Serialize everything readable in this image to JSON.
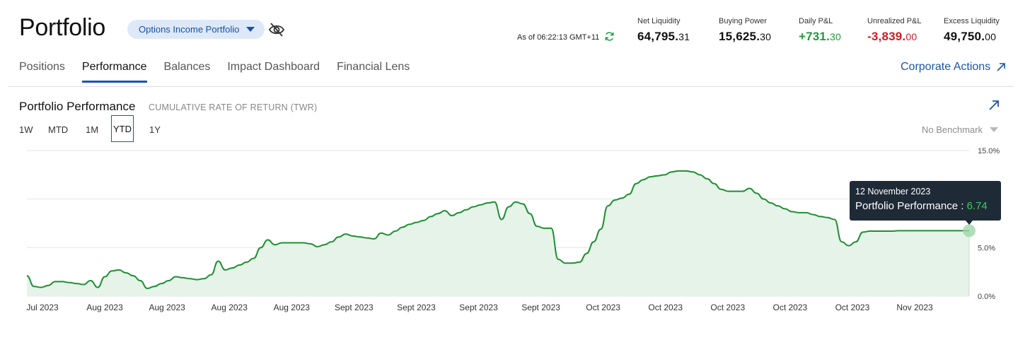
{
  "header": {
    "title": "Portfolio",
    "account_selector": "Options Income Portfolio",
    "as_of": "As of 06:22:13 GMT+11",
    "metrics": [
      {
        "label": "Net Liquidity",
        "main": "64,795.",
        "dec": "31"
      },
      {
        "label": "Buying Power",
        "main": "15,625.",
        "dec": "30"
      },
      {
        "label": "Daily P&L",
        "main": "+731.",
        "dec": "30",
        "color": "#1e9a3c"
      },
      {
        "label": "Unrealized P&L",
        "main": "-3,839.",
        "dec": "00",
        "color": "#d11a22"
      },
      {
        "label": "Excess Liquidity",
        "main": "49,750.",
        "dec": "00"
      }
    ]
  },
  "tabs": [
    "Positions",
    "Performance",
    "Balances",
    "Impact Dashboard",
    "Financial Lens"
  ],
  "active_tab": "Performance",
  "corporate_actions": "Corporate Actions",
  "panel": {
    "title": "Portfolio Performance",
    "subtitle": "CUMULATIVE RATE OF RETURN (TWR)",
    "ranges": [
      "1W",
      "MTD",
      "1M",
      "YTD",
      "1Y"
    ],
    "active_range": "YTD",
    "benchmark": "No Benchmark"
  },
  "chart_data": {
    "type": "area",
    "series": [
      {
        "name": "Portfolio Performance",
        "color": "#1e8f33"
      }
    ],
    "y_tick_labels": [
      "15.0%",
      "5.0%",
      "0.0%"
    ],
    "ylim": [
      0,
      15
    ],
    "x_tick_labels": [
      "Jul 2023",
      "Aug 2023",
      "Aug 2023",
      "Aug 2023",
      "Aug 2023",
      "Sept 2023",
      "Sept 2023",
      "Sept 2023",
      "Sept 2023",
      "Oct 2023",
      "Oct 2023",
      "Oct 2023",
      "Oct 2023",
      "Oct 2023",
      "Nov 2023"
    ],
    "x": [
      0,
      1,
      2,
      3,
      4,
      5,
      6,
      7,
      8,
      9,
      10,
      11,
      12,
      13,
      14,
      15,
      16,
      17,
      18,
      19,
      20,
      21,
      22,
      23,
      24,
      25,
      26,
      27,
      28,
      29,
      30,
      31,
      32,
      33,
      34,
      35,
      36,
      37,
      38,
      39,
      40,
      41,
      42,
      43,
      44,
      45,
      46,
      47,
      48,
      49,
      50,
      51,
      52,
      53,
      54,
      55,
      56,
      57,
      58,
      59,
      60,
      61,
      62,
      63,
      64,
      65,
      66,
      67,
      68,
      69,
      70,
      71,
      72,
      73,
      74,
      75,
      76,
      77,
      78,
      79,
      80,
      81,
      82,
      83,
      84,
      85,
      86,
      87,
      88,
      89,
      90,
      91,
      92,
      93,
      94,
      95,
      96,
      97,
      98,
      99,
      100,
      101,
      102,
      103,
      104,
      105,
      106,
      107,
      108,
      109,
      110,
      111,
      112,
      113,
      114,
      115,
      116,
      117,
      118,
      119,
      120,
      121,
      122,
      123,
      124,
      125,
      126,
      127,
      128,
      129,
      130,
      131,
      132,
      133
    ],
    "values": [
      2.1,
      1.0,
      0.9,
      1.1,
      1.5,
      1.5,
      1.4,
      1.3,
      1.2,
      1.6,
      0.9,
      2.0,
      2.6,
      2.7,
      2.4,
      2.1,
      1.6,
      0.8,
      1.0,
      1.3,
      1.6,
      2.0,
      1.9,
      1.8,
      1.7,
      1.8,
      2.2,
      3.6,
      2.7,
      2.9,
      3.2,
      3.5,
      3.9,
      5.0,
      5.8,
      5.3,
      5.5,
      5.5,
      5.5,
      5.5,
      5.4,
      5.1,
      5.3,
      5.6,
      6.1,
      6.4,
      6.2,
      6.1,
      6.0,
      5.9,
      6.5,
      6.3,
      6.7,
      7.1,
      7.4,
      7.6,
      7.8,
      8.2,
      8.5,
      8.8,
      8.3,
      8.6,
      8.9,
      9.2,
      9.4,
      9.6,
      9.7,
      7.9,
      9.2,
      9.7,
      9.5,
      8.5,
      7.2,
      7.0,
      7.0,
      3.8,
      3.4,
      3.4,
      3.5,
      4.4,
      5.6,
      6.9,
      9.3,
      9.9,
      10.1,
      10.5,
      11.6,
      12.0,
      12.3,
      12.4,
      12.5,
      12.8,
      12.9,
      12.9,
      12.8,
      12.5,
      12.1,
      11.6,
      11.0,
      10.8,
      10.8,
      10.8,
      11.1,
      10.6,
      10.0,
      9.6,
      9.3,
      9.0,
      8.7,
      8.6,
      8.6,
      8.4,
      8.2,
      8.1,
      7.9,
      5.6,
      5.2,
      5.6,
      6.6,
      6.7,
      6.7,
      6.7,
      6.7,
      6.74,
      6.74,
      6.74,
      6.74,
      6.74,
      6.74,
      6.74,
      6.74,
      6.74,
      6.74,
      6.74
    ],
    "tooltip": {
      "date": "12 November 2023",
      "label": "Portfolio Performance : ",
      "value": "6.74"
    },
    "grid": true
  }
}
